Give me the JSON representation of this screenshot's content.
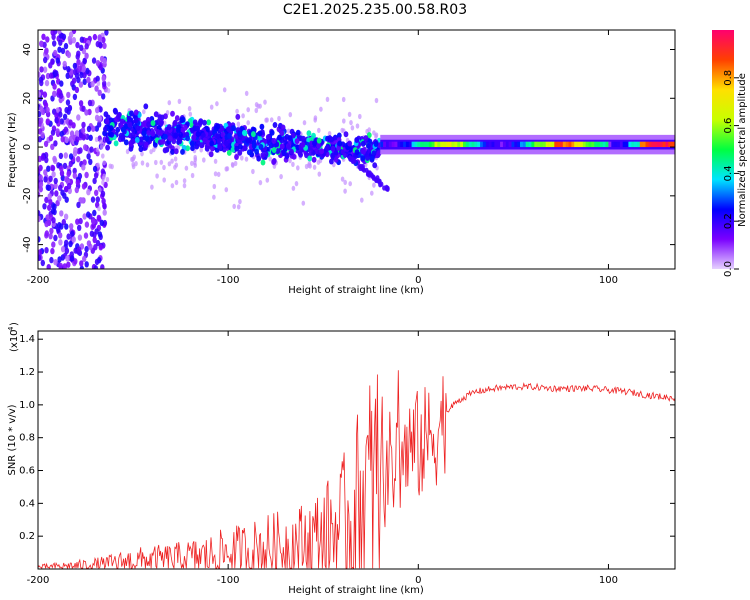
{
  "chart_data": [
    {
      "type": "heatmap",
      "title": "C2E1.2025.235.00.58.R03",
      "xlabel": "Height of straight line (km)",
      "ylabel": "Frequency (Hz)",
      "xlim": [
        -200,
        135
      ],
      "ylim": [
        -50,
        48
      ],
      "xticks": [
        "-200",
        "-100",
        "0",
        "100"
      ],
      "xtick_values": [
        -200,
        -100,
        0,
        100
      ],
      "yticks": [
        "-40",
        "-20",
        "0",
        "20",
        "40"
      ],
      "ytick_values": [
        -40,
        -20,
        0,
        20,
        40
      ],
      "colorbar": {
        "label": "Normalized spectral amplitude",
        "range": [
          0,
          1
        ],
        "ticks": [
          "0.0",
          "0.2",
          "0.4",
          "0.6",
          "0.8"
        ],
        "tick_values": [
          0,
          0.2,
          0.4,
          0.6,
          0.8
        ],
        "colormap": [
          "#e6d2ff",
          "#7a00ff",
          "#0000ff",
          "#00e5ff",
          "#00ff40",
          "#c8ff00",
          "#ffe000",
          "#ff4000",
          "#ff006e"
        ]
      },
      "regions": [
        {
          "name": "noise",
          "x": [
            -200,
            -165
          ],
          "freq_spread": 48,
          "amplitude": 0.08
        },
        {
          "name": "transition",
          "x": [
            -165,
            -20
          ],
          "freq_spread": 12,
          "amplitude": 0.2
        },
        {
          "name": "carrier",
          "x": [
            -20,
            135
          ],
          "freq_center": 1,
          "amplitude": 0.6
        }
      ]
    },
    {
      "type": "line",
      "xlabel": "Height of straight line (km)",
      "ylabel": "SNR (10 * v/v)",
      "scale_label": "(x10",
      "scale_exp": "4",
      "xlim": [
        -200,
        135
      ],
      "ylim": [
        0,
        1.45
      ],
      "xticks": [
        "-200",
        "-100",
        "0",
        "100"
      ],
      "xtick_values": [
        -200,
        -100,
        0,
        100
      ],
      "yticks": [
        "0.2",
        "0.4",
        "0.6",
        "0.8",
        "1.0",
        "1.2",
        "1.4"
      ],
      "ytick_values": [
        0.2,
        0.4,
        0.6,
        0.8,
        1.0,
        1.2,
        1.4
      ],
      "series": [
        {
          "name": "SNR",
          "color": "#ee2222",
          "x": [
            -200,
            -180,
            -165,
            -150,
            -130,
            -110,
            -100,
            -90,
            -80,
            -70,
            -60,
            -50,
            -40,
            -30,
            -20,
            -15,
            -10,
            -5,
            0,
            5,
            10,
            15,
            20,
            30,
            40,
            50,
            60,
            70,
            80,
            90,
            100,
            110,
            120,
            135
          ],
          "values": [
            0.01,
            0.02,
            0.03,
            0.05,
            0.06,
            0.08,
            0.1,
            0.11,
            0.13,
            0.14,
            0.16,
            0.2,
            0.26,
            0.4,
            0.55,
            0.62,
            0.66,
            0.72,
            0.75,
            0.78,
            0.85,
            0.95,
            1.02,
            1.08,
            1.1,
            1.11,
            1.11,
            1.1,
            1.1,
            1.1,
            1.09,
            1.08,
            1.06,
            1.04
          ]
        }
      ]
    }
  ]
}
